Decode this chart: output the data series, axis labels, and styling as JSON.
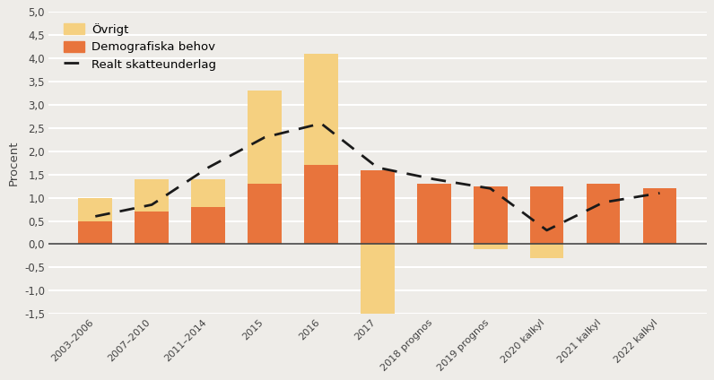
{
  "categories": [
    "2003–2006",
    "2007–2010",
    "2011–2014",
    "2015",
    "2016",
    "2017",
    "2018 prognos",
    "2019 prognos",
    "2020 kalkyl",
    "2021 kalkyl",
    "2022 kalkyl"
  ],
  "demografiska_behov": [
    0.5,
    0.7,
    0.8,
    1.3,
    1.7,
    1.6,
    1.3,
    1.25,
    1.25,
    1.3,
    1.2
  ],
  "ovrigt": [
    0.5,
    0.7,
    0.6,
    2.0,
    2.4,
    -1.55,
    0.0,
    -0.1,
    -0.3,
    0.0,
    0.0
  ],
  "realt_skatteunderlag": [
    0.6,
    0.85,
    1.65,
    2.3,
    2.6,
    1.65,
    1.4,
    1.2,
    0.3,
    0.9,
    1.1
  ],
  "bar_color_demografi": "#e8743c",
  "bar_color_ovrigt": "#f5d080",
  "line_color": "#1a1a1a",
  "background_color": "#eeece8",
  "grid_color": "#ffffff",
  "ylabel": "Procent",
  "ylim": [
    -1.5,
    5.0
  ],
  "yticks": [
    -1.5,
    -1.0,
    -0.5,
    0.0,
    0.5,
    1.0,
    1.5,
    2.0,
    2.5,
    3.0,
    3.5,
    4.0,
    4.5,
    5.0
  ],
  "legend_ovrigt": "Övrigt",
  "legend_demografi": "Demografiska behov",
  "legend_skatt": "Realt skatteunderlag"
}
